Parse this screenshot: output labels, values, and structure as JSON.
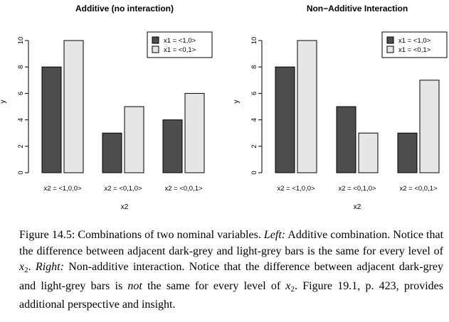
{
  "chart_data": [
    {
      "type": "bar",
      "title": "Additive (no interaction)",
      "xlabel": "x2",
      "ylabel": "y",
      "ylim": [
        0,
        10
      ],
      "yticks": [
        "0",
        "2",
        "4",
        "6",
        "8",
        "10"
      ],
      "categories": [
        "x2 = <1,0,0>",
        "x2 = <0,1,0>",
        "x2 = <0,0,1>"
      ],
      "series": [
        {
          "name": "x1 = <1,0>",
          "color": "#4d4d4d",
          "values": [
            8,
            3,
            4
          ]
        },
        {
          "name": "x1 = <0,1>",
          "color": "#e6e6e6",
          "values": [
            10,
            5,
            6
          ]
        }
      ],
      "legend": "top-right",
      "grid": false
    },
    {
      "type": "bar",
      "title": "Non−Additive Interaction",
      "xlabel": "x2",
      "ylabel": "y",
      "ylim": [
        0,
        10
      ],
      "yticks": [
        "0",
        "2",
        "4",
        "6",
        "8",
        "10"
      ],
      "categories": [
        "x2 = <1,0,0>",
        "x2 = <0,1,0>",
        "x2 = <0,0,1>"
      ],
      "series": [
        {
          "name": "x1 = <1,0>",
          "color": "#4d4d4d",
          "values": [
            8,
            5,
            3
          ]
        },
        {
          "name": "x1 = <0,1>",
          "color": "#e6e6e6",
          "values": [
            10,
            3,
            7
          ]
        }
      ],
      "legend": "top-right",
      "grid": false
    }
  ],
  "caption": {
    "label": "Figure 14.5:",
    "t1": " Combinations of two nominal variables. ",
    "left": "Left:",
    "t2": " Additive combination. Notice that the difference between adjacent dark-grey and light-grey bars is the same for every level of ",
    "var": "x",
    "sub": "2",
    "t3": ". ",
    "right": "Right:",
    "t4": " Non-additive interaction. Notice that the difference between adjacent dark-grey and light-grey bars is ",
    "not": "not",
    "t5": " the same for every level of ",
    "t6": ". Figure 19.1, p. 423, provides additional perspective and insight."
  }
}
